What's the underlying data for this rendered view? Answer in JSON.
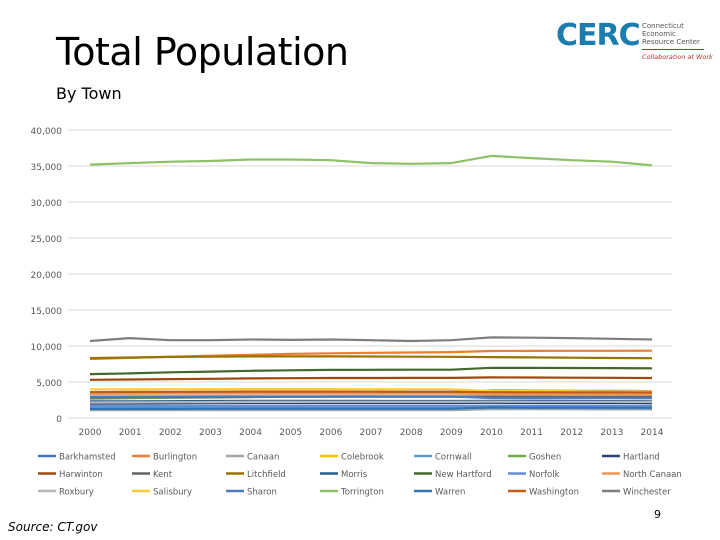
{
  "page": {
    "title": "Total Population",
    "subtitle": "By Town",
    "source": "Source: CT.gov",
    "page_number": "9",
    "logo": {
      "mark": "CERC",
      "name": "Connecticut Economic Resource Center",
      "tagline": "Collaboration at Work",
      "colors": {
        "mark": "#1b7cae",
        "tagline": "#b5312c"
      }
    }
  },
  "chart_data": {
    "type": "line",
    "title": "Total Population",
    "subtitle": "By Town",
    "xlabel": "",
    "ylabel": "",
    "ylim": [
      0,
      40000
    ],
    "yticks": [
      0,
      5000,
      10000,
      15000,
      20000,
      25000,
      30000,
      35000,
      40000
    ],
    "ytick_labels": [
      "0",
      "5,000",
      "10,000",
      "15,000",
      "20,000",
      "25,000",
      "30,000",
      "35,000",
      "40,000"
    ],
    "grid": true,
    "legend_position": "bottom",
    "categories": [
      "2000",
      "2001",
      "2002",
      "2003",
      "2004",
      "2005",
      "2006",
      "2007",
      "2008",
      "2009",
      "2010",
      "2011",
      "2012",
      "2013",
      "2014"
    ],
    "series": [
      {
        "name": "Barkhamsted",
        "color": "#4472c4",
        "values": [
          3500,
          3530,
          3560,
          3580,
          3600,
          3610,
          3620,
          3620,
          3630,
          3630,
          3800,
          3790,
          3780,
          3760,
          3740
        ]
      },
      {
        "name": "Burlington",
        "color": "#ed7d31",
        "values": [
          8200,
          8350,
          8500,
          8650,
          8780,
          8900,
          8980,
          9050,
          9100,
          9150,
          9300,
          9320,
          9330,
          9340,
          9350
        ]
      },
      {
        "name": "Canaan",
        "color": "#a5a5a5",
        "values": [
          1080,
          1080,
          1080,
          1080,
          1080,
          1080,
          1080,
          1080,
          1080,
          1080,
          1230,
          1220,
          1210,
          1200,
          1190
        ]
      },
      {
        "name": "Colebrook",
        "color": "#ffc000",
        "values": [
          1470,
          1480,
          1490,
          1500,
          1510,
          1510,
          1510,
          1510,
          1510,
          1510,
          1480,
          1470,
          1460,
          1450,
          1440
        ]
      },
      {
        "name": "Cornwall",
        "color": "#5b9bd5",
        "values": [
          1430,
          1430,
          1430,
          1430,
          1430,
          1430,
          1430,
          1430,
          1430,
          1430,
          1420,
          1410,
          1400,
          1390,
          1380
        ]
      },
      {
        "name": "Goshen",
        "color": "#70ad47",
        "values": [
          2700,
          2750,
          2800,
          2850,
          2900,
          2950,
          2980,
          3000,
          3010,
          3010,
          2980,
          2970,
          2960,
          2950,
          2940
        ]
      },
      {
        "name": "Hartland",
        "color": "#264478",
        "values": [
          2000,
          2020,
          2040,
          2060,
          2080,
          2090,
          2090,
          2090,
          2090,
          2090,
          2110,
          2100,
          2090,
          2080,
          2070
        ]
      },
      {
        "name": "Harwinton",
        "color": "#9e480e",
        "values": [
          5300,
          5350,
          5400,
          5450,
          5500,
          5530,
          5550,
          5560,
          5570,
          5570,
          5640,
          5620,
          5600,
          5580,
          5560
        ]
      },
      {
        "name": "Kent",
        "color": "#636363",
        "values": [
          2850,
          2880,
          2900,
          2920,
          2930,
          2940,
          2940,
          2940,
          2940,
          2940,
          2980,
          2970,
          2960,
          2950,
          2940
        ]
      },
      {
        "name": "Litchfield",
        "color": "#997300",
        "values": [
          8320,
          8400,
          8480,
          8520,
          8550,
          8560,
          8560,
          8540,
          8520,
          8500,
          8460,
          8420,
          8380,
          8340,
          8300
        ]
      },
      {
        "name": "Morris",
        "color": "#255e91",
        "values": [
          2300,
          2320,
          2340,
          2360,
          2370,
          2370,
          2370,
          2370,
          2360,
          2360,
          2380,
          2370,
          2360,
          2350,
          2340
        ]
      },
      {
        "name": "New Hartford",
        "color": "#43682b",
        "values": [
          6100,
          6200,
          6350,
          6450,
          6550,
          6620,
          6680,
          6700,
          6710,
          6710,
          6970,
          6960,
          6950,
          6930,
          6900
        ]
      },
      {
        "name": "Norfolk",
        "color": "#698ed0",
        "values": [
          1670,
          1675,
          1680,
          1685,
          1690,
          1690,
          1690,
          1690,
          1690,
          1690,
          1710,
          1705,
          1700,
          1695,
          1690
        ]
      },
      {
        "name": "North Canaan",
        "color": "#f1975a",
        "values": [
          3350,
          3360,
          3370,
          3380,
          3390,
          3390,
          3390,
          3390,
          3380,
          3380,
          3320,
          3310,
          3300,
          3290,
          3280
        ]
      },
      {
        "name": "Roxbury",
        "color": "#b7b7b7",
        "values": [
          2150,
          2170,
          2190,
          2210,
          2230,
          2240,
          2250,
          2250,
          2250,
          2250,
          2260,
          2255,
          2250,
          2245,
          2240
        ]
      },
      {
        "name": "Salisbury",
        "color": "#ffcd33",
        "values": [
          3980,
          3990,
          4000,
          4010,
          4020,
          4020,
          4010,
          4000,
          3990,
          3980,
          3740,
          3730,
          3720,
          3710,
          3700
        ]
      },
      {
        "name": "Sharon",
        "color": "#4d7cbe",
        "values": [
          2970,
          2980,
          2990,
          3000,
          3010,
          3010,
          3010,
          3000,
          2990,
          2980,
          2780,
          2770,
          2760,
          2750,
          2740
        ]
      },
      {
        "name": "Torrington",
        "color": "#8cc168",
        "values": [
          35200,
          35400,
          35600,
          35700,
          35900,
          35900,
          35800,
          35400,
          35300,
          35400,
          36400,
          36100,
          35800,
          35600,
          35100
        ]
      },
      {
        "name": "Warren",
        "color": "#2e75b6",
        "values": [
          1250,
          1260,
          1270,
          1280,
          1290,
          1290,
          1290,
          1290,
          1290,
          1290,
          1460,
          1450,
          1440,
          1430,
          1420
        ]
      },
      {
        "name": "Washington",
        "color": "#c55a11",
        "values": [
          3600,
          3620,
          3640,
          3650,
          3660,
          3660,
          3660,
          3650,
          3640,
          3640,
          3580,
          3570,
          3560,
          3550,
          3540
        ]
      },
      {
        "name": "Winchester",
        "color": "#7f7f7f",
        "values": [
          10700,
          11100,
          10800,
          10800,
          10900,
          10850,
          10900,
          10800,
          10700,
          10800,
          11200,
          11150,
          11100,
          11000,
          10900
        ]
      }
    ]
  }
}
